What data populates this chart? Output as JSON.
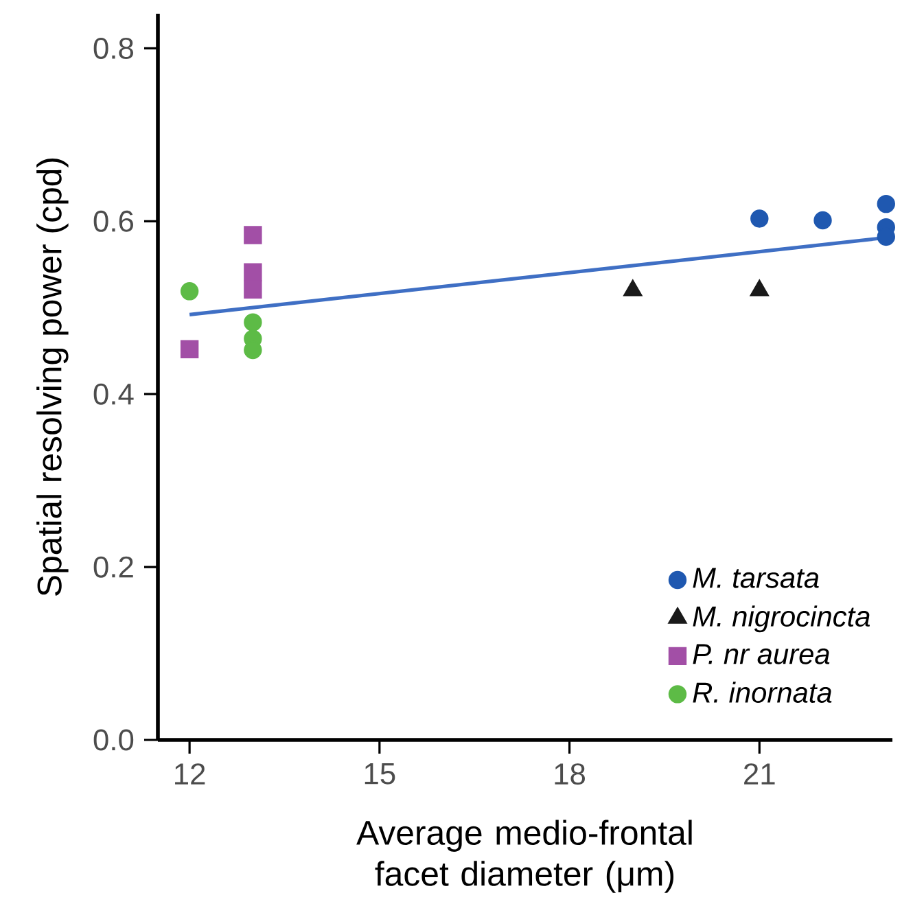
{
  "chart_data": {
    "type": "scatter",
    "xlabel": "Average medio-frontal facet diameter (μm)",
    "ylabel": "Spatial resolving power (cpd)",
    "xlim": [
      11.5,
      23.1
    ],
    "ylim": [
      0,
      0.84
    ],
    "xticks": [
      12,
      15,
      18,
      21
    ],
    "yticks": [
      {
        "value": 0,
        "label": "0.0"
      },
      0.2,
      0.4,
      0.6,
      0.8
    ],
    "grid": false,
    "legend": "bottom right",
    "series": [
      {
        "type": "line",
        "color": "#3f6fc4",
        "x": [
          12,
          23
        ],
        "values": [
          0.492,
          0.581
        ],
        "marker": "none"
      },
      {
        "name": "M. tarsata",
        "color": "#1f58b0",
        "marker": "circle",
        "x": [
          21,
          22,
          23,
          23,
          23
        ],
        "values": [
          0.603,
          0.601,
          0.62,
          0.593,
          0.582
        ]
      },
      {
        "name": "M. nigrocincta",
        "color": "#1a1a1a",
        "marker": "triangle",
        "x": [
          19,
          21
        ],
        "values": [
          0.52,
          0.52
        ]
      },
      {
        "name": "P. nr aurea",
        "color": "#a24fa6",
        "marker": "square",
        "x": [
          12,
          13,
          13,
          13
        ],
        "values": [
          0.452,
          0.584,
          0.541,
          0.521
        ]
      },
      {
        "name": "R. inornata",
        "color": "#5dbb46",
        "marker": "circle",
        "x": [
          12,
          13,
          13,
          13
        ],
        "values": [
          0.519,
          0.483,
          0.464,
          0.451
        ]
      }
    ]
  }
}
